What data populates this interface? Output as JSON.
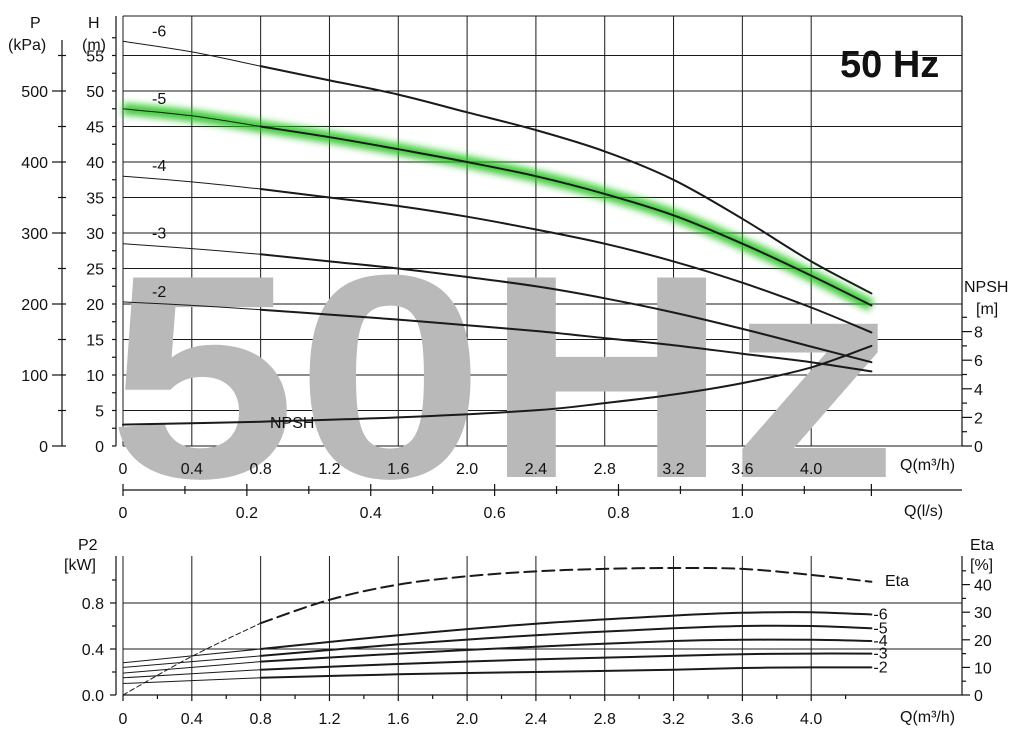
{
  "chart_data": [
    {
      "type": "line",
      "badge": "50 Hz",
      "watermark": "50Hz",
      "x_unit_label": "Q(m³/h)",
      "x_ticks": [
        "0",
        "0.4",
        "0.8",
        "1.2",
        "1.6",
        "2.0",
        "2.4",
        "2.8",
        "3.2",
        "3.6",
        "4.0"
      ],
      "xlim": [
        0,
        4.4
      ],
      "q_ls_label": "Q(l/s)",
      "q_ls_ticks": [
        "0",
        "0.2",
        "0.4",
        "0.6",
        "0.8",
        "1.0"
      ],
      "h_axis": {
        "title": "H",
        "unit": "(m)",
        "ylim": [
          0,
          60
        ],
        "ticks": [
          "0",
          "5",
          "10",
          "15",
          "20",
          "25",
          "30",
          "35",
          "40",
          "45",
          "50",
          "55"
        ]
      },
      "p_axis": {
        "title": "P",
        "unit": "(kPa)",
        "ticks": [
          "0",
          "100",
          "200",
          "300",
          "400",
          "500"
        ]
      },
      "npsh_axis": {
        "title": "NPSH",
        "unit": "[m]",
        "ticks": [
          "0",
          "2",
          "4",
          "6",
          "8"
        ]
      },
      "highlight_color": "#22c41e",
      "highlighted_series": "-5",
      "series": [
        {
          "name": "-6",
          "x": [
            0,
            0.4,
            0.8,
            1.2,
            1.6,
            2.0,
            2.4,
            2.8,
            3.2,
            3.6,
            4.0,
            4.35
          ],
          "y": [
            57,
            55.5,
            53.5,
            51.5,
            49.5,
            47,
            44.5,
            41.5,
            37.5,
            32,
            26,
            21.5
          ]
        },
        {
          "name": "-5",
          "x": [
            0,
            0.4,
            0.8,
            1.2,
            1.6,
            2.0,
            2.4,
            2.8,
            3.2,
            3.6,
            4.0,
            4.35
          ],
          "y": [
            47.5,
            46.5,
            45,
            43.5,
            41.8,
            40,
            38,
            35.5,
            32.5,
            28.5,
            24,
            19.8
          ]
        },
        {
          "name": "-4",
          "x": [
            0,
            0.4,
            0.8,
            1.2,
            1.6,
            2.0,
            2.4,
            2.8,
            3.2,
            3.6,
            4.0,
            4.35
          ],
          "y": [
            38,
            37.2,
            36.2,
            35,
            33.8,
            32.3,
            30.5,
            28.5,
            26,
            23,
            19.5,
            16
          ]
        },
        {
          "name": "-3",
          "x": [
            0,
            0.4,
            0.8,
            1.2,
            1.6,
            2.0,
            2.4,
            2.8,
            3.2,
            3.6,
            4.0,
            4.35
          ],
          "y": [
            28.5,
            27.8,
            27,
            26,
            25,
            23.8,
            22.5,
            20.8,
            18.8,
            16.5,
            14,
            11.8
          ]
        },
        {
          "name": "-2",
          "x": [
            0,
            0.4,
            0.8,
            1.2,
            1.6,
            2.0,
            2.4,
            2.8,
            3.2,
            3.6,
            4.0,
            4.35
          ],
          "y": [
            20.3,
            19.8,
            19.2,
            18.5,
            17.8,
            17,
            16.2,
            15.2,
            14.2,
            13,
            11.8,
            10.5
          ]
        }
      ],
      "npsh": {
        "label": "NPSH",
        "x": [
          0,
          0.8,
          1.6,
          2.4,
          2.8,
          3.2,
          3.6,
          4.0,
          4.35
        ],
        "y": [
          1.5,
          1.7,
          2,
          2.5,
          3,
          3.6,
          4.4,
          5.5,
          7
        ]
      }
    },
    {
      "type": "line",
      "x_unit_label": "Q(m³/h)",
      "x_ticks": [
        "0",
        "0.4",
        "0.8",
        "1.2",
        "1.6",
        "2.0",
        "2.4",
        "2.8",
        "3.2",
        "3.6",
        "4.0"
      ],
      "xlim": [
        0,
        4.4
      ],
      "p2_axis": {
        "title": "P2",
        "unit": "[kW]",
        "ylim": [
          0,
          1.0
        ],
        "ticks": [
          "0.0",
          "0.4",
          "0.8"
        ]
      },
      "eta_axis": {
        "title": "Eta",
        "unit": "[%]",
        "ylim": [
          0,
          50
        ],
        "ticks": [
          "0",
          "10",
          "20",
          "30",
          "40"
        ]
      },
      "series": [
        {
          "name": "-6",
          "x": [
            0,
            0.8,
            1.6,
            2.4,
            3.2,
            3.6,
            4.0,
            4.35
          ],
          "y": [
            0.28,
            0.4,
            0.52,
            0.62,
            0.69,
            0.715,
            0.72,
            0.7
          ]
        },
        {
          "name": "-5",
          "x": [
            0,
            0.8,
            1.6,
            2.4,
            3.2,
            3.6,
            4.0,
            4.35
          ],
          "y": [
            0.24,
            0.34,
            0.44,
            0.52,
            0.58,
            0.6,
            0.6,
            0.58
          ]
        },
        {
          "name": "-4",
          "x": [
            0,
            0.8,
            1.6,
            2.4,
            3.2,
            3.6,
            4.0,
            4.35
          ],
          "y": [
            0.19,
            0.29,
            0.36,
            0.42,
            0.47,
            0.48,
            0.48,
            0.47
          ]
        },
        {
          "name": "-3",
          "x": [
            0,
            0.8,
            1.6,
            2.4,
            3.2,
            3.6,
            4.0,
            4.35
          ],
          "y": [
            0.15,
            0.22,
            0.27,
            0.31,
            0.34,
            0.355,
            0.36,
            0.36
          ]
        },
        {
          "name": "-2",
          "x": [
            0,
            0.8,
            1.6,
            2.4,
            3.2,
            3.6,
            4.0,
            4.35
          ],
          "y": [
            0.1,
            0.15,
            0.18,
            0.2,
            0.22,
            0.235,
            0.24,
            0.24
          ]
        }
      ],
      "eta": {
        "label": "Eta",
        "x": [
          0,
          0.4,
          0.8,
          1.2,
          1.6,
          2.0,
          2.4,
          2.8,
          3.2,
          3.6,
          4.0,
          4.35
        ],
        "y": [
          0,
          14,
          26,
          34.5,
          40,
          43,
          44.8,
          45.7,
          46,
          45.7,
          43.5,
          41
        ]
      }
    }
  ]
}
